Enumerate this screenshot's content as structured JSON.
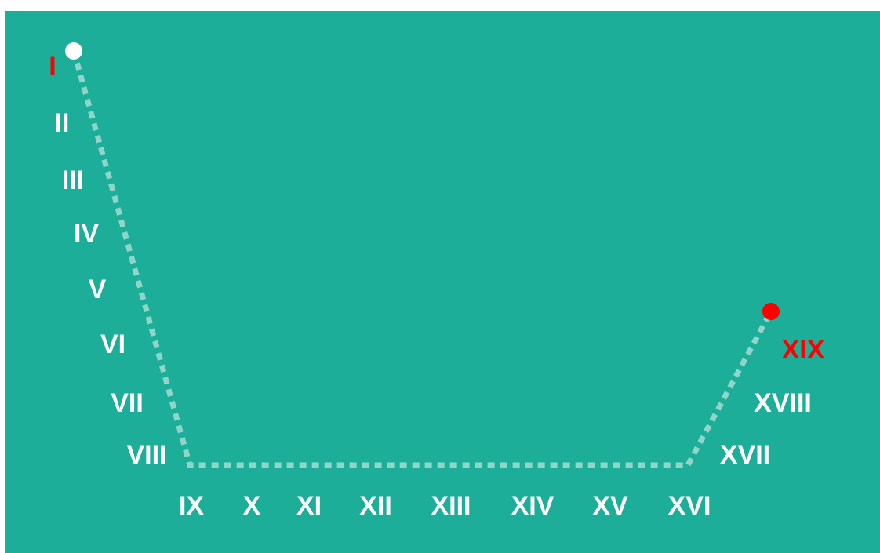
{
  "colors": {
    "background": "#1dae99",
    "path": "#8fd6c9",
    "text": "#ffffff",
    "highlight": "#ff0000",
    "start_marker": "#ffffff",
    "end_marker": "#ff0000"
  },
  "labels": [
    {
      "text": "I",
      "highlight": true
    },
    {
      "text": "II",
      "highlight": false
    },
    {
      "text": "III",
      "highlight": false
    },
    {
      "text": "IV",
      "highlight": false
    },
    {
      "text": "V",
      "highlight": false
    },
    {
      "text": "VI",
      "highlight": false
    },
    {
      "text": "VII",
      "highlight": false
    },
    {
      "text": "VIII",
      "highlight": false
    },
    {
      "text": "IX",
      "highlight": false
    },
    {
      "text": "X",
      "highlight": false
    },
    {
      "text": "XI",
      "highlight": false
    },
    {
      "text": "XII",
      "highlight": false
    },
    {
      "text": "XIII",
      "highlight": false
    },
    {
      "text": "XIV",
      "highlight": false
    },
    {
      "text": "XV",
      "highlight": false
    },
    {
      "text": "XVI",
      "highlight": false
    },
    {
      "text": "XVII",
      "highlight": false
    },
    {
      "text": "XVIII",
      "highlight": false
    },
    {
      "text": "XIX",
      "highlight": true
    }
  ]
}
